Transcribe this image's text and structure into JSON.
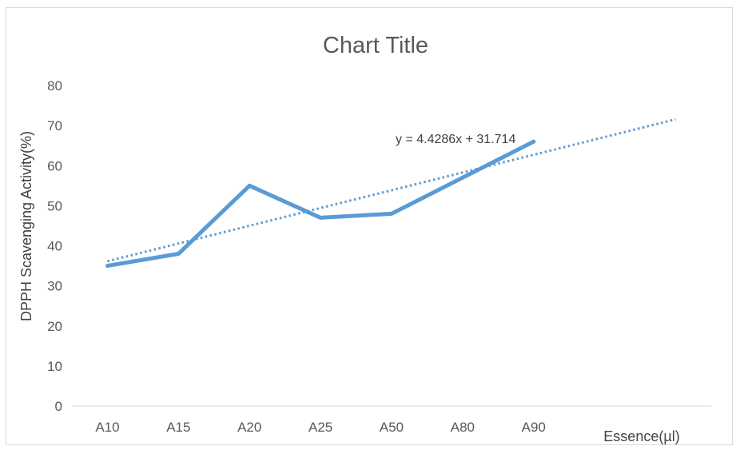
{
  "chart_data": {
    "type": "line",
    "title": "Chart Title",
    "xlabel": "Essence(µl)",
    "ylabel": "DPPH Scavenging Activity(%)",
    "categories": [
      "A10",
      "A15",
      "A20",
      "A25",
      "A50",
      "A80",
      "A90"
    ],
    "series": [
      {
        "values": [
          35,
          38,
          55,
          47,
          48,
          57,
          66
        ],
        "color": "#5b9bd5"
      }
    ],
    "trendline": {
      "type": "linear",
      "slope": 4.4286,
      "intercept": 31.714,
      "forward_periods": 2,
      "label": "y = 4.4286x + 31.714",
      "style": "dotted",
      "color": "#5b9bd5"
    },
    "ylim": [
      0,
      80
    ],
    "yticks": [
      0,
      10,
      20,
      30,
      40,
      50,
      60,
      70,
      80
    ],
    "grid": false,
    "legend": false
  }
}
